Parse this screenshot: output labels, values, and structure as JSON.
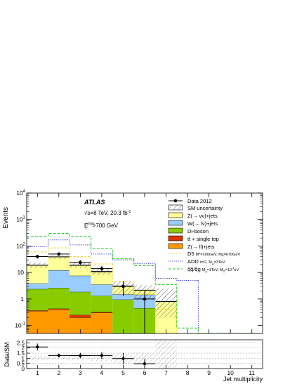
{
  "chart_data": [
    {
      "type": "bar",
      "stacked": true,
      "ylog": true,
      "ylim": [
        0.05,
        10000
      ],
      "xlim": [
        0.5,
        11.5
      ],
      "x": [
        1,
        2,
        3,
        4,
        5,
        6,
        7,
        8,
        9,
        10,
        11
      ],
      "ylabel": "Events",
      "xlabel": "",
      "yticks": [
        {
          "v": 0.1,
          "label": "10",
          "sup": "-1"
        },
        {
          "v": 1,
          "label": "1",
          "sup": ""
        },
        {
          "v": 10,
          "label": "10",
          "sup": ""
        },
        {
          "v": 100,
          "label": "10",
          "sup": "2"
        },
        {
          "v": 1000,
          "label": "10",
          "sup": "3"
        },
        {
          "v": 10000,
          "label": "10",
          "sup": "4"
        }
      ],
      "annotations": {
        "atlas": "ATLAS",
        "energy": "√s=8 TeV, 20.3 fb",
        "energy_sup": "-1",
        "met_main": "E",
        "met_sup": "miss",
        "met_sub": "T",
        "met_cut": ">700 GeV"
      },
      "stack": [
        {
          "name": "Z(→ ll)+jets",
          "color": "#ff9900",
          "values": [
            0.35,
            0.4,
            0.2,
            0.3,
            0.05,
            0.05,
            0,
            0,
            0,
            0,
            0
          ]
        },
        {
          "name": "tt̄ + single top",
          "color": "#dd3300",
          "values": [
            0.02,
            0.03,
            0.05,
            0.02,
            0,
            0,
            0,
            0,
            0,
            0,
            0
          ]
        },
        {
          "name": "Di-boson",
          "color": "#88cc00",
          "values": [
            2.0,
            2.2,
            1.6,
            1.0,
            0.9,
            0.4,
            0,
            0,
            0,
            0,
            0
          ]
        },
        {
          "name": "W(→ lν)+jets",
          "color": "#99ccff",
          "values": [
            1.5,
            9.5,
            5.7,
            2.2,
            0.55,
            1.0,
            0,
            0,
            0,
            0,
            0
          ]
        },
        {
          "name": "Z(→ νν)+jets",
          "color": "#ffff99",
          "values": [
            15,
            27,
            11,
            7,
            1.6,
            0.7,
            0.8,
            0,
            0,
            0,
            0
          ]
        }
      ],
      "sm_total": [
        19,
        39,
        19,
        11,
        3.1,
        2.15,
        0.8,
        0,
        0,
        0,
        0
      ],
      "sm_unc_band": [
        [
          15,
          24
        ],
        [
          33,
          46
        ],
        [
          15,
          24
        ],
        [
          8,
          14
        ],
        [
          1.5,
          4.6
        ],
        [
          0.9,
          3.3
        ],
        [
          0.2,
          2.5
        ],
        [
          0,
          0
        ],
        [
          0,
          0
        ],
        [
          0,
          0
        ],
        [
          0,
          0
        ]
      ],
      "data": {
        "name": "Data 2012",
        "values": [
          40,
          50,
          24,
          14,
          3,
          1,
          0,
          0,
          0,
          0,
          0
        ],
        "errors": [
          6.3,
          7.1,
          4.9,
          3.7,
          1.7,
          1.0,
          0,
          0,
          0,
          0,
          0
        ]
      },
      "signals": [
        {
          "name": "D5",
          "legend_detail": "M*=100GeV, Mχ=670GeV",
          "color": "#ffcc33",
          "values": [
            60,
            85,
            40,
            21,
            4.5,
            1.5,
            0.4,
            0,
            0,
            0,
            0
          ]
        },
        {
          "name": "ADD",
          "legend_detail": "n=2, MD=3TeV",
          "color": "#3333cc",
          "values": [
            95,
            170,
            110,
            50,
            30,
            22,
            6,
            5,
            0.05,
            0.05,
            0.05
          ]
        },
        {
          "name": "q̃q̃/q̃g",
          "legend_detail": "Mq̃=1TeV, MG̃=10⁻⁴eV",
          "color": "#22cc22",
          "values": [
            230,
            300,
            230,
            80,
            33,
            18,
            3.5,
            0.08,
            0,
            0,
            0
          ]
        }
      ],
      "legend": {
        "data": "Data 2012",
        "sm_uncertainty": "SM uncertainty",
        "znunu": "Z(→ νν)+jets",
        "wlnu": "W(→ lν)+jets",
        "diboson": "Di-boson",
        "ttbar": "tt̄ + single top",
        "zll": "Z(→ ll)+jets",
        "d5_name": "D5",
        "d5_detail": "M*=100GeV, Mχ=670GeV",
        "add_name": "ADD",
        "add_detail": "n=2, M",
        "add_sub": "D",
        "add_detail2": "=3TeV",
        "gravitino_name": "q̃q̃/q̃g",
        "gravitino_detail": "M",
        "gravitino_sub": "q̃",
        "gravitino_detail2": "=1TeV, M",
        "gravitino_sub2": "G̃",
        "gravitino_detail3": "=10",
        "gravitino_sup": "-4",
        "gravitino_detail4": "eV"
      }
    },
    {
      "type": "scatter",
      "ylabel": "Data/SM",
      "xlabel": "Jet multiplicity",
      "ylim": [
        0,
        2.8
      ],
      "xlim": [
        0.5,
        11.5
      ],
      "yticks": [
        "0",
        "0.5",
        "1",
        "1.5",
        "2",
        "2.5"
      ],
      "xticks": [
        "1",
        "2",
        "3",
        "4",
        "5",
        "6",
        "7",
        "8",
        "9",
        "10",
        "11"
      ],
      "ratio": [
        2.1,
        1.27,
        1.26,
        1.27,
        0.97,
        0.47
      ],
      "ratio_errors": [
        0.33,
        0.18,
        0.26,
        0.34,
        0.55,
        0.47
      ],
      "unc_band": [
        [
          0.8,
          1.25
        ],
        [
          0.85,
          1.18
        ],
        [
          0.8,
          1.25
        ],
        [
          0.72,
          1.28
        ],
        [
          0.5,
          1.5
        ],
        [
          0.45,
          1.55
        ],
        [
          0,
          2.8
        ]
      ]
    }
  ]
}
